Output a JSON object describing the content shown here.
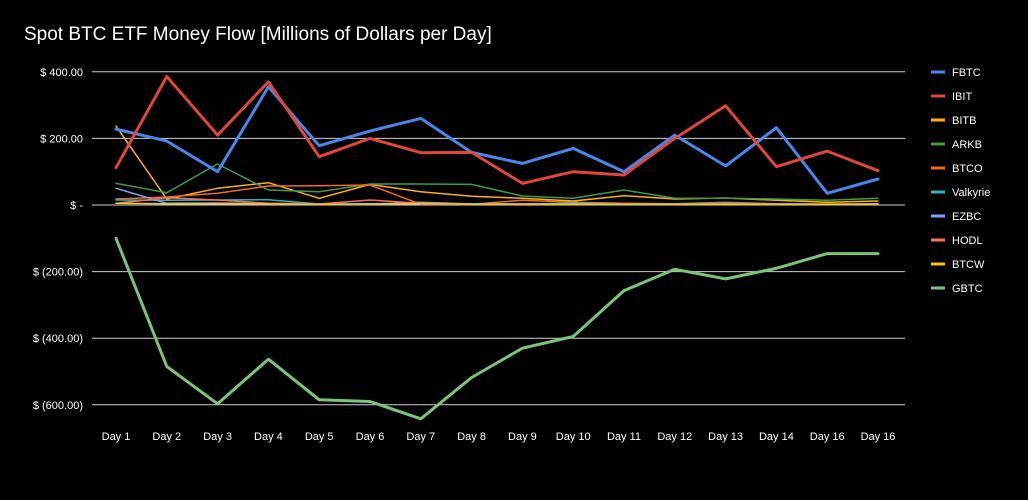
{
  "chart_data": {
    "type": "line",
    "title": "Spot BTC ETF Money Flow [Millions of Dollars per Day]",
    "xlabel": "",
    "ylabel": "",
    "ylim": [
      -690,
      400
    ],
    "yticks": [
      400,
      200,
      0,
      -200,
      -400,
      -600
    ],
    "ytick_labels": [
      "$ 400.00",
      "$ 200.00",
      "$ -",
      "$ (200.00)",
      "$ (400.00)",
      "$ (600.00)"
    ],
    "grid": true,
    "legend_position": "right",
    "categories": [
      "Day 1",
      "Day 2",
      "Day 3",
      "Day 4",
      "Day 5",
      "Day 6",
      "Day 7",
      "Day 8",
      "Day 9",
      "Day 10",
      "Day 11",
      "Day 12",
      "Day 13",
      "Day 14",
      "Day 16",
      "Day 16"
    ],
    "series": [
      {
        "name": "FBTC",
        "color": "#4a86e8",
        "width": 3,
        "values": [
          228,
          192,
          100,
          355,
          178,
          222,
          260,
          158,
          125,
          170,
          100,
          210,
          117,
          232,
          35,
          78
        ]
      },
      {
        "name": "IBIT",
        "color": "#e0463b",
        "width": 3,
        "values": [
          112,
          386,
          210,
          370,
          145,
          200,
          157,
          158,
          65,
          100,
          90,
          200,
          298,
          115,
          162,
          103
        ]
      },
      {
        "name": "BITB",
        "color": "#f6b419",
        "width": 1.5,
        "values": [
          237,
          18,
          50,
          67,
          20,
          62,
          40,
          26,
          20,
          12,
          28,
          18,
          21,
          14,
          8,
          12
        ]
      },
      {
        "name": "ARKB",
        "color": "#3f9a4a",
        "width": 1.5,
        "values": [
          65,
          37,
          123,
          45,
          40,
          63,
          63,
          62,
          27,
          20,
          45,
          20,
          20,
          18,
          14,
          20
        ]
      },
      {
        "name": "BTCO",
        "color": "#ef6c1f",
        "width": 1.5,
        "values": [
          18,
          24,
          35,
          57,
          58,
          60,
          2,
          2,
          14,
          8,
          5,
          4,
          8,
          4,
          3,
          4
        ]
      },
      {
        "name": "Valkyrie",
        "color": "#26b5c4",
        "width": 1.5,
        "values": [
          15,
          14,
          15,
          16,
          3,
          4,
          5,
          4,
          3,
          5,
          3,
          3,
          5,
          3,
          2,
          3
        ]
      },
      {
        "name": "EZBC",
        "color": "#7ea3f5",
        "width": 1.5,
        "values": [
          50,
          5,
          6,
          4,
          2,
          2,
          8,
          3,
          3,
          4,
          2,
          2,
          3,
          2,
          2,
          2
        ]
      },
      {
        "name": "HODL",
        "color": "#f06f6c",
        "width": 1.5,
        "values": [
          5,
          22,
          15,
          5,
          3,
          15,
          5,
          2,
          3,
          2,
          2,
          2,
          3,
          2,
          2,
          2
        ]
      },
      {
        "name": "BTCW",
        "color": "#f7c51c",
        "width": 1.5,
        "values": [
          5,
          4,
          4,
          3,
          2,
          3,
          4,
          2,
          2,
          2,
          2,
          2,
          2,
          2,
          2,
          2
        ]
      },
      {
        "name": "GBTC",
        "color": "#7cc47a",
        "width": 3,
        "values": [
          -100,
          -485,
          -597,
          -463,
          -585,
          -590,
          -642,
          -518,
          -430,
          -395,
          -257,
          -193,
          -222,
          -190,
          -146,
          -146
        ]
      }
    ]
  }
}
